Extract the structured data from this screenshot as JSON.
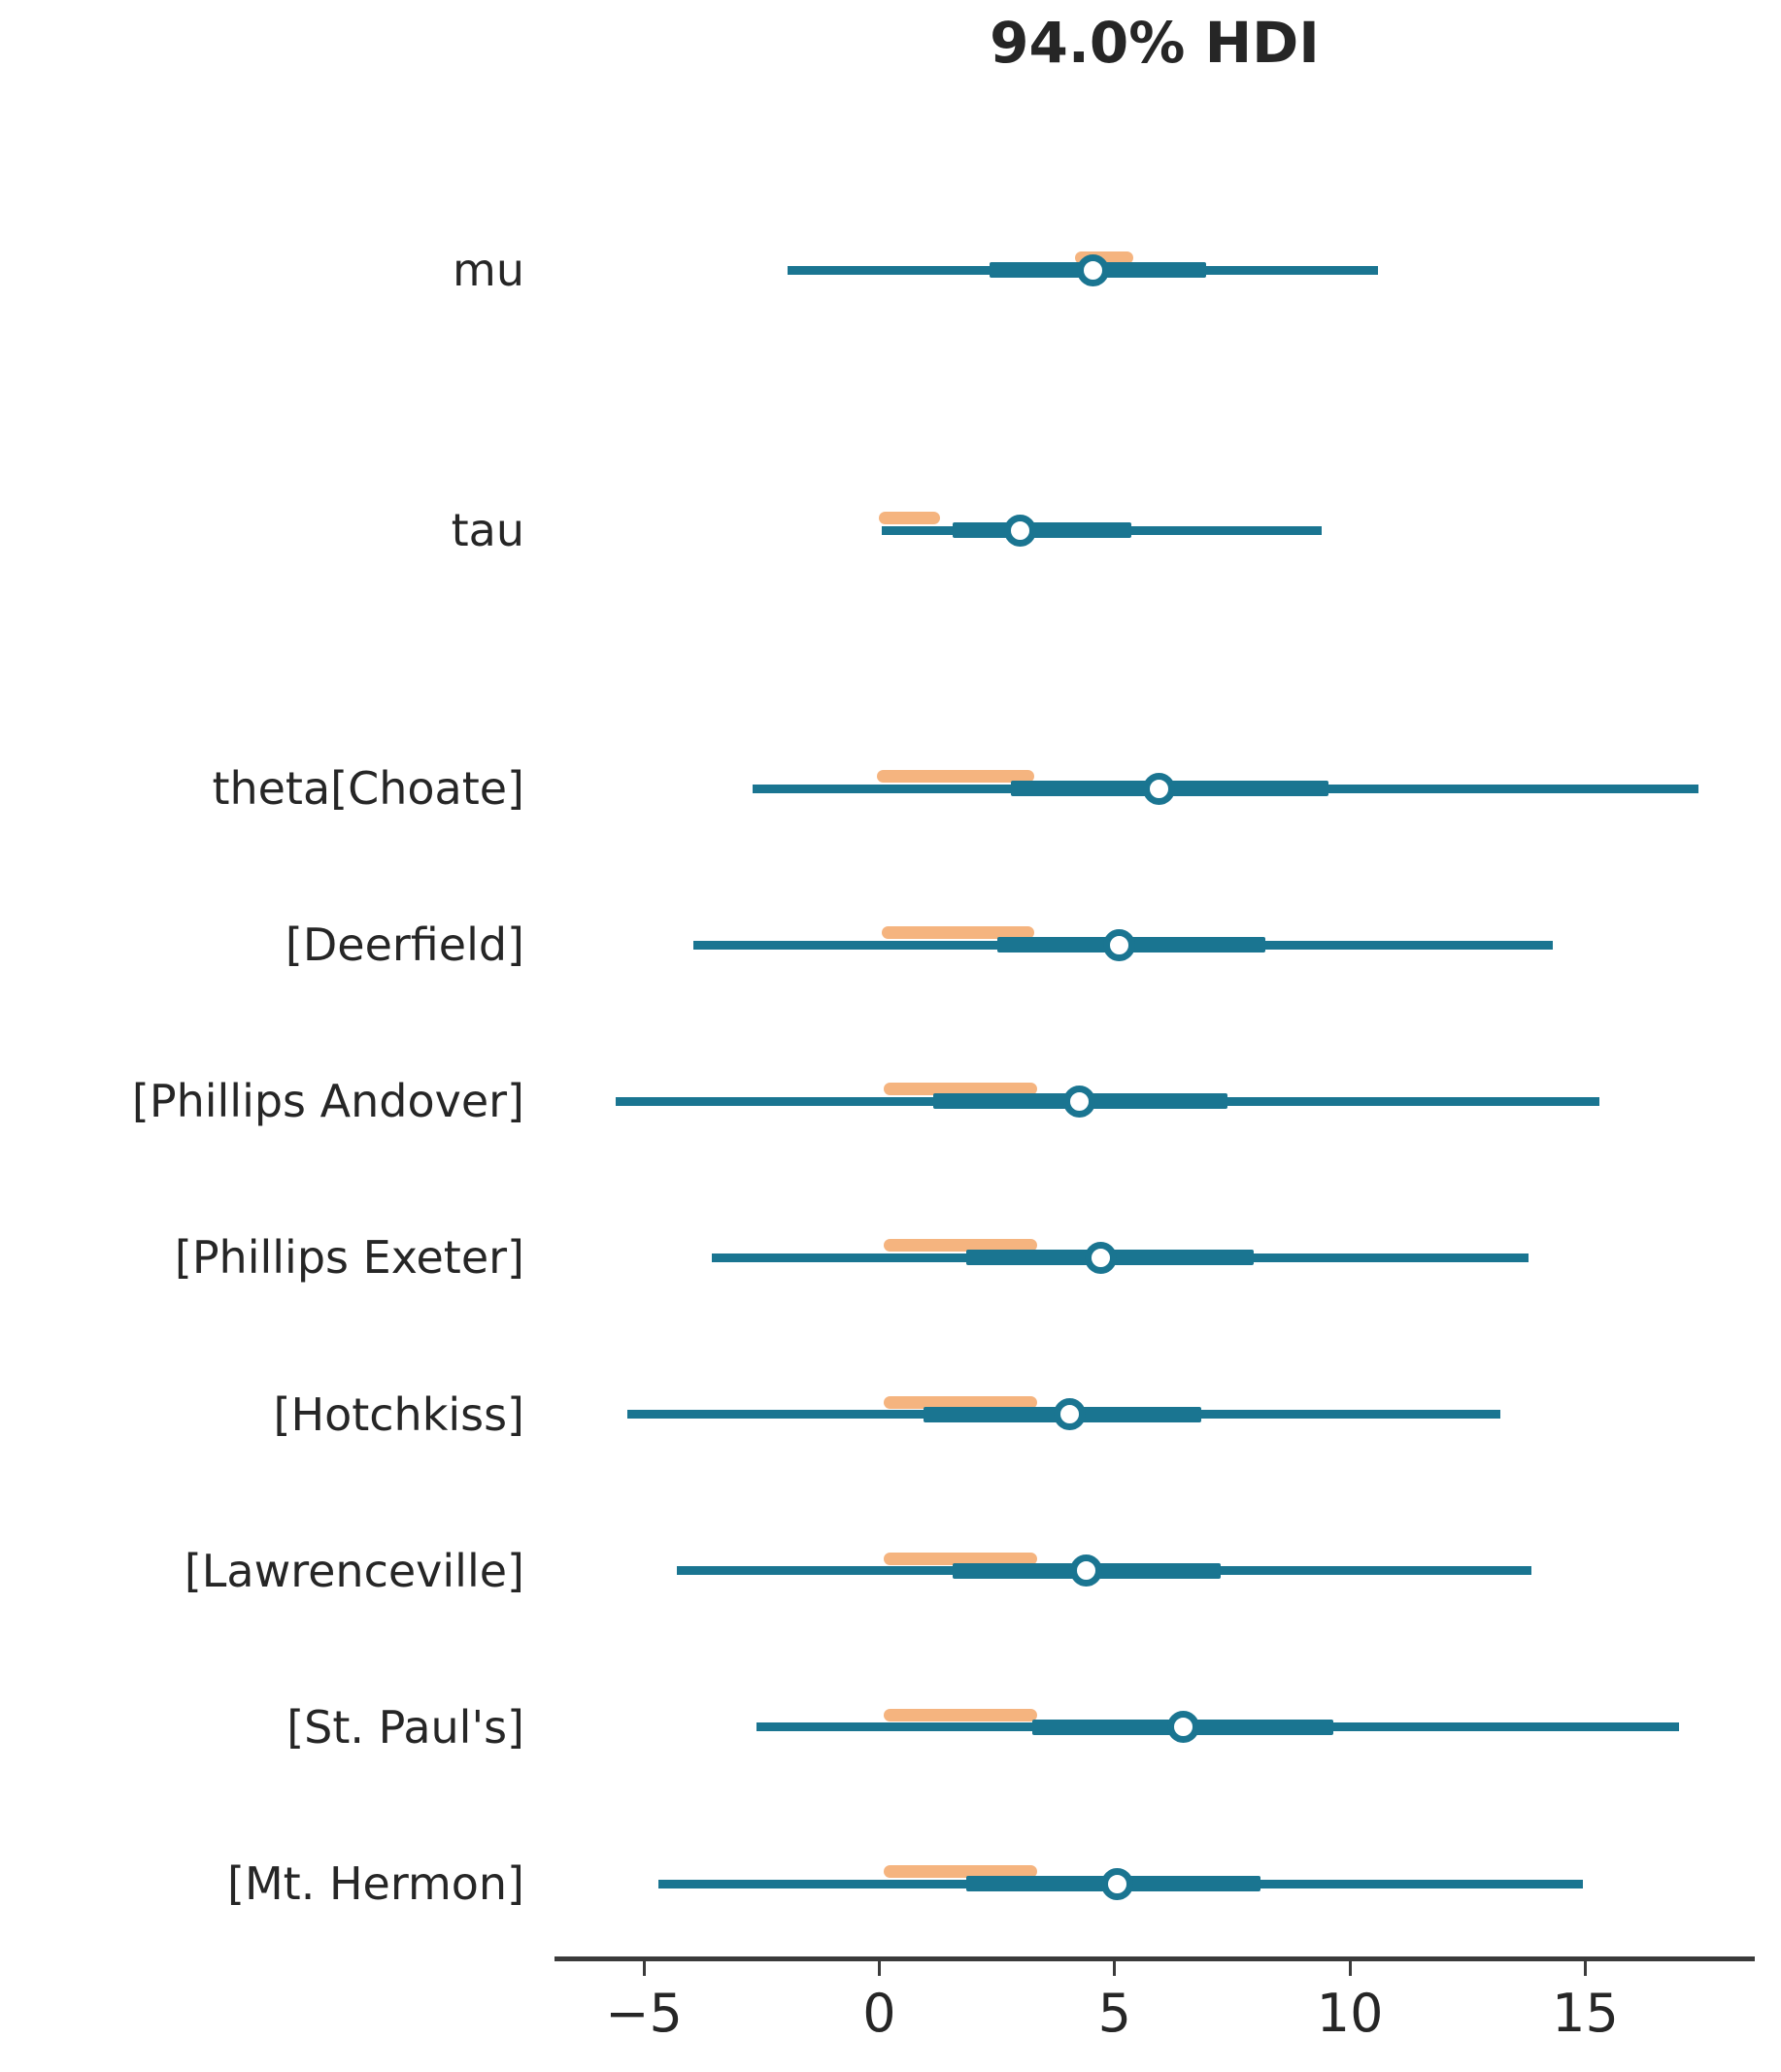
{
  "figure": {
    "title": "94.0% HDI"
  },
  "chart_data": {
    "type": "forest",
    "title": "94.0% HDI",
    "hdi_prob": 0.94,
    "xlabel": "",
    "ylabel": "",
    "grid": false,
    "legend_position": "none",
    "xlim": [
      -6.9,
      18.6
    ],
    "x_ticks": [
      {
        "value": -5,
        "label": "−5"
      },
      {
        "value": 0,
        "label": "0"
      },
      {
        "value": 5,
        "label": "5"
      },
      {
        "value": 10,
        "label": "10"
      },
      {
        "value": 15,
        "label": "15"
      }
    ],
    "colors": {
      "interval": "#1a7591",
      "reference_band": "#f5b47f",
      "median_fill": "#ffffff",
      "axis": "#3b3b3b",
      "text": "#262626"
    },
    "rows": [
      {
        "label": "mu",
        "hdi": [
          -1.95,
          10.6
        ],
        "iqr": [
          2.35,
          6.95
        ],
        "median": 4.55,
        "band": [
          4.15,
          5.4
        ]
      },
      {
        "label": "tau",
        "hdi": [
          0.05,
          9.4
        ],
        "iqr": [
          1.55,
          5.35
        ],
        "median": 3.0,
        "band": [
          0.0,
          1.3
        ]
      },
      {
        "label": "theta[Choate]",
        "hdi": [
          -2.7,
          17.4
        ],
        "iqr": [
          2.8,
          9.55
        ],
        "median": 5.95,
        "band": [
          -0.05,
          3.3
        ]
      },
      {
        "label": "[Deerfield]",
        "hdi": [
          -3.95,
          14.3
        ],
        "iqr": [
          2.5,
          8.2
        ],
        "median": 5.1,
        "band": [
          0.05,
          3.3
        ]
      },
      {
        "label": "[Phillips Andover]",
        "hdi": [
          -5.6,
          15.3
        ],
        "iqr": [
          1.15,
          7.4
        ],
        "median": 4.25,
        "band": [
          0.1,
          3.35
        ]
      },
      {
        "label": "[Phillips Exeter]",
        "hdi": [
          -3.55,
          13.8
        ],
        "iqr": [
          1.85,
          7.95
        ],
        "median": 4.7,
        "band": [
          0.1,
          3.35
        ]
      },
      {
        "label": "[Hotchkiss]",
        "hdi": [
          -5.35,
          13.2
        ],
        "iqr": [
          0.95,
          6.85
        ],
        "median": 4.05,
        "band": [
          0.1,
          3.35
        ]
      },
      {
        "label": "[Lawrenceville]",
        "hdi": [
          -4.3,
          13.85
        ],
        "iqr": [
          1.55,
          7.25
        ],
        "median": 4.4,
        "band": [
          0.1,
          3.35
        ]
      },
      {
        "label": "[St. Paul's]",
        "hdi": [
          -2.6,
          17.0
        ],
        "iqr": [
          3.25,
          9.65
        ],
        "median": 6.45,
        "band": [
          0.1,
          3.35
        ]
      },
      {
        "label": "[Mt. Hermon]",
        "hdi": [
          -4.7,
          14.95
        ],
        "iqr": [
          1.85,
          8.1
        ],
        "median": 5.05,
        "band": [
          0.1,
          3.35
        ]
      }
    ]
  }
}
